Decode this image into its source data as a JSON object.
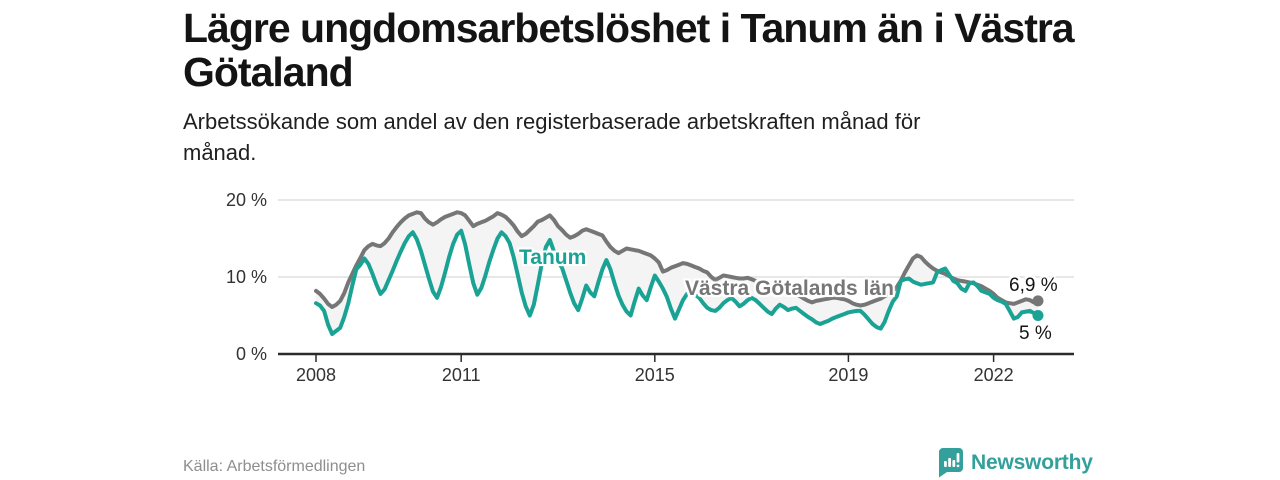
{
  "header": {
    "title": "Lägre ungdomsarbetslöshet i Tanum än i Västra Götaland",
    "title_lines": [
      "Lägre ungdomsarbetslöshet i Tanum än i Västra",
      "Götaland"
    ],
    "subtitle": "Arbetssökande som andel av den registerbaserade arbetskraften månad för månad.",
    "subtitle_lines": [
      "Arbetssökande som andel av den registerbaserade arbetskraften månad för",
      "månad."
    ]
  },
  "chart_data": {
    "type": "line",
    "title": "Lägre ungdomsarbetslöshet i Tanum än i Västra Götaland",
    "unit": "%",
    "frequency": "monthly",
    "start_year": 2008,
    "x_ticks": [
      2008,
      2011,
      2015,
      2019,
      2022
    ],
    "y_ticks": [
      {
        "value": 0,
        "label": "0 %"
      },
      {
        "value": 10,
        "label": "10 %"
      },
      {
        "value": 20,
        "label": "20 %"
      }
    ],
    "y_range": [
      0,
      21
    ],
    "grid": true,
    "legend": "inline-labels",
    "band_fill": "#f4f4f4",
    "series": [
      {
        "name": "Västra Götalands län",
        "color": "#767676",
        "end_label": "6,9 %",
        "end_value": 6.9,
        "values": [
          8.2,
          7.8,
          7.2,
          6.5,
          6.1,
          6.4,
          6.9,
          7.9,
          9.3,
          10.4,
          11.5,
          12.5,
          13.5,
          14.0,
          14.3,
          14.1,
          14.0,
          14.4,
          15.0,
          15.8,
          16.5,
          17.1,
          17.6,
          18.0,
          18.2,
          18.4,
          18.3,
          17.6,
          17.1,
          16.8,
          17.1,
          17.5,
          17.8,
          18.0,
          18.2,
          18.4,
          18.3,
          18.0,
          17.3,
          16.6,
          16.9,
          17.1,
          17.3,
          17.6,
          17.9,
          18.3,
          18.1,
          17.8,
          17.3,
          16.7,
          15.9,
          15.3,
          15.6,
          16.1,
          16.6,
          17.2,
          17.4,
          17.7,
          18.0,
          17.4,
          16.6,
          16.1,
          15.5,
          15.1,
          15.3,
          15.6,
          16.0,
          16.2,
          16.0,
          15.8,
          15.6,
          15.4,
          14.6,
          13.9,
          13.4,
          13.1,
          13.4,
          13.7,
          13.6,
          13.5,
          13.4,
          13.2,
          13.0,
          12.8,
          12.4,
          11.9,
          10.7,
          10.9,
          11.2,
          11.4,
          11.6,
          11.8,
          11.7,
          11.5,
          11.3,
          11.1,
          10.8,
          10.6,
          10.0,
          9.6,
          9.9,
          10.2,
          10.1,
          10.0,
          9.9,
          9.8,
          9.8,
          9.9,
          9.7,
          9.5,
          9.1,
          8.8,
          8.6,
          8.5,
          8.7,
          8.8,
          8.6,
          8.4,
          8.2,
          7.8,
          7.5,
          7.2,
          6.9,
          6.7,
          6.9,
          7.0,
          7.1,
          7.2,
          7.3,
          7.3,
          7.2,
          7.1,
          6.9,
          6.6,
          6.4,
          6.3,
          6.4,
          6.6,
          6.8,
          7.0,
          7.2,
          7.5,
          7.8,
          8.2,
          8.7,
          9.5,
          10.6,
          11.5,
          12.4,
          12.8,
          12.6,
          12.0,
          11.5,
          11.1,
          10.8,
          10.6,
          10.4,
          10.1,
          9.8,
          9.6,
          9.5,
          9.4,
          9.3,
          9.2,
          9.0,
          8.8,
          8.5,
          8.2,
          7.8,
          7.3,
          7.0,
          6.7,
          6.6,
          6.5,
          6.7,
          6.9,
          7.1,
          7.0,
          6.7,
          6.9
        ]
      },
      {
        "name": "Tanum",
        "color": "#1aa394",
        "end_label": "5 %",
        "end_value": 5.0,
        "values": [
          6.6,
          6.3,
          5.6,
          3.8,
          2.6,
          3.0,
          3.4,
          4.8,
          6.6,
          8.9,
          11.0,
          11.6,
          12.4,
          11.7,
          10.4,
          9.0,
          7.8,
          8.4,
          9.6,
          10.8,
          12.1,
          13.3,
          14.4,
          15.3,
          15.8,
          14.9,
          13.4,
          11.6,
          9.8,
          8.1,
          7.3,
          8.7,
          10.6,
          12.6,
          14.3,
          15.5,
          16.0,
          14.2,
          11.6,
          9.2,
          7.7,
          8.6,
          10.2,
          12.0,
          13.6,
          15.0,
          15.8,
          15.3,
          14.4,
          12.6,
          10.3,
          8.0,
          6.2,
          5.0,
          6.4,
          9.0,
          11.8,
          13.9,
          14.8,
          13.3,
          12.0,
          11.2,
          9.6,
          8.0,
          6.6,
          5.7,
          7.2,
          8.9,
          8.0,
          7.5,
          9.3,
          11.0,
          12.2,
          11.0,
          9.2,
          7.6,
          6.4,
          5.5,
          5.0,
          6.8,
          8.5,
          7.6,
          7.0,
          8.7,
          10.2,
          9.4,
          8.5,
          7.4,
          5.9,
          4.6,
          5.8,
          7.0,
          7.8,
          8.0,
          7.7,
          7.3,
          6.6,
          6.0,
          5.7,
          5.6,
          6.0,
          6.6,
          7.0,
          7.3,
          6.8,
          6.2,
          6.5,
          7.0,
          7.3,
          7.0,
          6.5,
          6.0,
          5.5,
          5.2,
          5.9,
          6.4,
          6.1,
          5.7,
          5.9,
          6.0,
          5.6,
          5.2,
          4.8,
          4.5,
          4.1,
          3.9,
          4.1,
          4.3,
          4.6,
          4.8,
          5.0,
          5.2,
          5.4,
          5.5,
          5.6,
          5.6,
          5.1,
          4.5,
          3.9,
          3.5,
          3.3,
          4.2,
          5.6,
          6.8,
          7.5,
          9.5,
          9.7,
          9.8,
          9.4,
          9.2,
          9.0,
          9.1,
          9.2,
          9.3,
          10.6,
          10.9,
          11.1,
          10.3,
          9.5,
          9.2,
          8.5,
          8.2,
          9.2,
          9.3,
          8.8,
          8.2,
          8.0,
          7.8,
          7.3,
          7.0,
          6.8,
          6.5,
          5.6,
          4.6,
          4.8,
          5.4,
          5.5,
          5.6,
          5.3,
          5.0
        ]
      }
    ]
  },
  "colors": {
    "tanum_line": "#1aa394",
    "vg_line": "#767676",
    "band_fill": "#f4f4f4",
    "gridline": "#dfdfdf",
    "axis": "#2b2b2b",
    "brand_teal": "#33a09b"
  },
  "footer": {
    "source": "Källa: Arbetsförmedlingen",
    "brand": "Newsworthy"
  }
}
